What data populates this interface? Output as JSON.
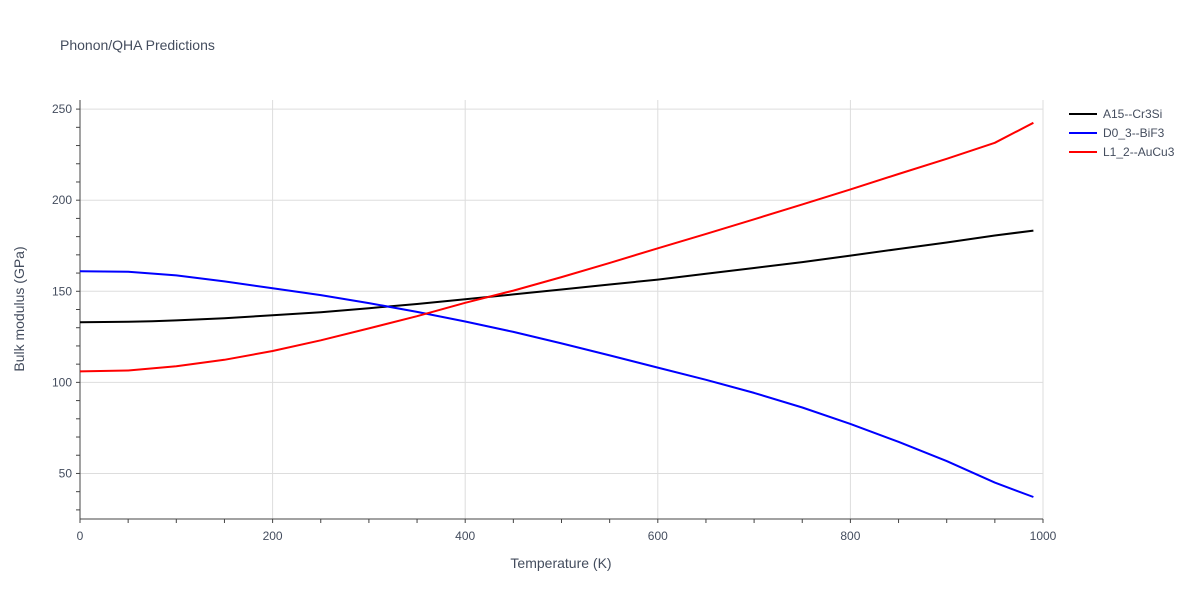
{
  "chart_data": {
    "type": "line",
    "title": "Phonon/QHA Predictions",
    "xlabel": "Temperature (K)",
    "ylabel": "Bulk modulus (GPa)",
    "xlim": [
      0,
      1000
    ],
    "ylim": [
      25,
      255
    ],
    "xticks": [
      0,
      200,
      400,
      600,
      800,
      1000
    ],
    "yticks": [
      50,
      100,
      150,
      200,
      250
    ],
    "grid": true,
    "legend_position": "top-right",
    "series": [
      {
        "name": "A15--Cr3Si",
        "color": "#000000",
        "x": [
          0,
          50,
          75,
          100,
          150,
          200,
          250,
          300,
          350,
          400,
          450,
          500,
          550,
          600,
          650,
          700,
          750,
          800,
          850,
          900,
          950,
          990
        ],
        "y": [
          133,
          133.3,
          133.5,
          134,
          135.2,
          136.8,
          138.5,
          140.7,
          143,
          145.6,
          148.3,
          151,
          153.7,
          156.4,
          159.6,
          162.8,
          166,
          169.6,
          173.2,
          176.8,
          180.6,
          183.3
        ]
      },
      {
        "name": "D0_3--BiF3",
        "color": "#0000ff",
        "x": [
          0,
          50,
          100,
          150,
          200,
          250,
          300,
          350,
          400,
          450,
          500,
          550,
          600,
          650,
          700,
          750,
          800,
          850,
          900,
          950,
          990
        ],
        "y": [
          161,
          160.7,
          158.7,
          155.4,
          151.7,
          147.9,
          143.5,
          138.7,
          133.4,
          127.7,
          121.4,
          114.8,
          108.1,
          101.4,
          94.2,
          86.2,
          77.2,
          67.4,
          56.8,
          45,
          37.1
        ]
      },
      {
        "name": "L1_2--AuCu3",
        "color": "#ff0000",
        "x": [
          0,
          50,
          100,
          150,
          200,
          250,
          300,
          350,
          400,
          450,
          500,
          550,
          600,
          650,
          700,
          750,
          800,
          850,
          900,
          950,
          990
        ],
        "y": [
          106,
          106.5,
          108.8,
          112.4,
          117.2,
          123.1,
          129.6,
          136.3,
          143.7,
          150.4,
          157.8,
          165.6,
          173.6,
          181.5,
          189.5,
          197.7,
          205.9,
          214.4,
          222.7,
          231.5,
          242.5
        ]
      }
    ]
  }
}
